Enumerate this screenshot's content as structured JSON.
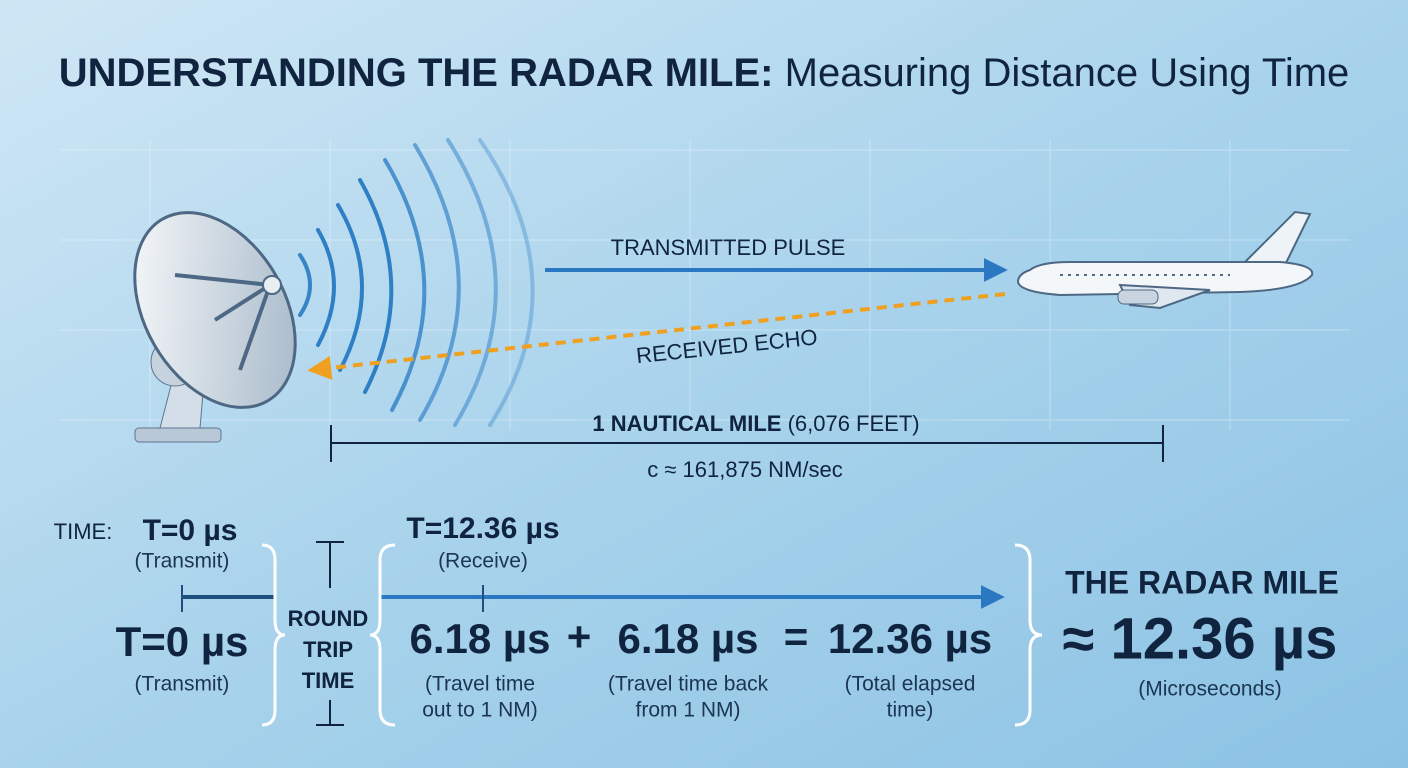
{
  "title": {
    "bold": "UNDERSTANDING THE RADAR MILE:",
    "rest": "Measuring Distance Using Time"
  },
  "diagram": {
    "pulse_label": "TRANSMITTED PULSE",
    "echo_label": "RECEIVED ECHO",
    "distance": {
      "bold": "1 NAUTICAL MILE",
      "rest": "(6,076 FEET)"
    },
    "speed": "c ≈ 161,875 NM/sec"
  },
  "timeline": {
    "label": "TIME:",
    "start": {
      "time": "T=0 µs",
      "note": "(Transmit)"
    },
    "end": {
      "time": "T=12.36 µs",
      "note": "(Receive)"
    }
  },
  "calculation": {
    "start": {
      "time": "T=0 µs",
      "note": "(Transmit)"
    },
    "bracket_label": [
      "ROUND",
      "TRIP",
      "TIME"
    ],
    "terms": [
      {
        "value": "6.18 µs",
        "note": [
          "(Travel time",
          "out to 1 NM)"
        ]
      },
      {
        "value": "6.18 µs",
        "note": [
          "(Travel time back",
          "from 1 NM)"
        ]
      },
      {
        "value": "12.36 µs",
        "note": [
          "(Total elapsed",
          "time)"
        ]
      }
    ],
    "operators": [
      "+",
      "="
    ]
  },
  "result": {
    "title": "THE RADAR MILE",
    "value": "≈ 12.36 µs",
    "note": "(Microseconds)"
  }
}
